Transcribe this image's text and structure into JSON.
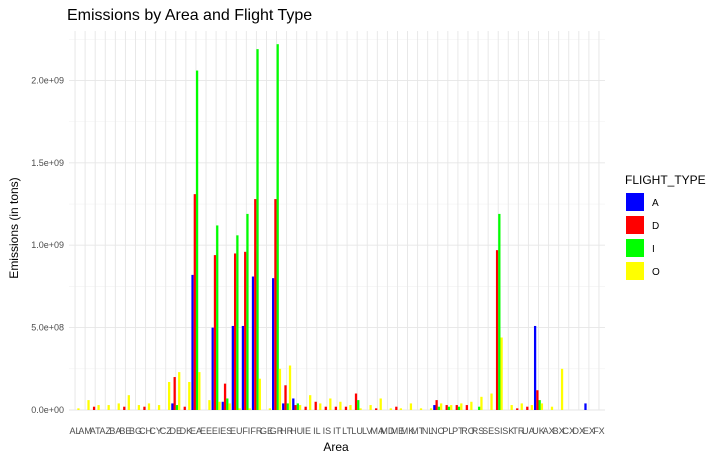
{
  "chart_data": {
    "type": "bar",
    "title": "Emissions by Area and Flight Type",
    "xlabel": "Area",
    "ylabel": "Emissions (in tons)",
    "ylim": [
      0,
      2300000000
    ],
    "yticks": [
      0,
      500000000,
      1000000000,
      1500000000,
      2000000000
    ],
    "ytick_labels": [
      "0.0e+00",
      "5.0e+08",
      "1.0e+09",
      "1.5e+09",
      "2.0e+09"
    ],
    "grid": true,
    "legend": {
      "title": "FLIGHT_TYPE",
      "position": "right"
    },
    "categories": [
      "AL",
      "AM",
      "AT",
      "AZ",
      "BA",
      "BE",
      "BG",
      "CH",
      "CY",
      "CZ",
      "DE",
      "DK",
      "EA",
      "EE",
      "EI",
      "ES",
      "EU",
      "FI",
      "FR",
      "GE",
      "GR",
      "HR",
      "HU",
      "IE",
      "IL",
      "IS",
      "IT",
      "LT",
      "LU",
      "LV",
      "MA",
      "MD",
      "ME",
      "MK",
      "MT",
      "NL",
      "NO",
      "PL",
      "PT",
      "RO",
      "RS",
      "SE",
      "SI",
      "SK",
      "TR",
      "UA",
      "UK",
      "AX",
      "BX",
      "CX",
      "DX",
      "EX",
      "FX"
    ],
    "xtick_labels": [
      "AL",
      "AM",
      "AT",
      "AZ",
      "BA",
      "BE",
      "BG",
      "CH",
      "CY",
      "CZ",
      "DE",
      "DK",
      "EA",
      "EE",
      "EI",
      "ES",
      "EU",
      "FI",
      "FR",
      "GE",
      "GR",
      "HR",
      "HU",
      "IE",
      "IL",
      "IS",
      "IT",
      "LT",
      "LU",
      "LV",
      "MA",
      "MD",
      "ME",
      "MK",
      "MT",
      "NL",
      "NO",
      "PL",
      "PT",
      "RO",
      "RS",
      "SE",
      "SI",
      "SK",
      "TR",
      "UA",
      "UK",
      "AX",
      "BX",
      "CX",
      "DX",
      "EX",
      "FX"
    ],
    "series": [
      {
        "name": "A",
        "color": "#0000ff",
        "values": [
          0,
          0,
          0,
          0,
          0,
          0,
          0,
          0,
          0,
          0,
          40000000,
          0,
          820000000,
          0,
          500000000,
          50000000,
          510000000,
          510000000,
          810000000,
          0,
          800000000,
          40000000,
          70000000,
          0,
          0,
          0,
          0,
          0,
          0,
          0,
          0,
          0,
          0,
          0,
          0,
          0,
          30000000,
          0,
          0,
          0,
          0,
          0,
          0,
          0,
          0,
          0,
          510000000,
          0,
          0,
          0,
          0,
          40000000,
          0
        ]
      },
      {
        "name": "D",
        "color": "#ff0000",
        "values": [
          0,
          0,
          20000000,
          0,
          0,
          20000000,
          0,
          20000000,
          0,
          0,
          200000000,
          20000000,
          1310000000,
          0,
          940000000,
          160000000,
          950000000,
          960000000,
          1280000000,
          0,
          1280000000,
          150000000,
          30000000,
          20000000,
          50000000,
          20000000,
          20000000,
          20000000,
          100000000,
          0,
          10000000,
          0,
          20000000,
          0,
          0,
          0,
          60000000,
          30000000,
          30000000,
          30000000,
          0,
          0,
          970000000,
          0,
          10000000,
          20000000,
          120000000,
          0,
          0,
          0,
          0,
          0,
          0
        ]
      },
      {
        "name": "I",
        "color": "#00ff00",
        "values": [
          0,
          0,
          0,
          0,
          0,
          0,
          0,
          0,
          0,
          0,
          30000000,
          0,
          2060000000,
          0,
          1120000000,
          70000000,
          1060000000,
          1190000000,
          2190000000,
          0,
          2220000000,
          40000000,
          40000000,
          0,
          0,
          0,
          0,
          0,
          60000000,
          0,
          0,
          0,
          0,
          0,
          0,
          0,
          20000000,
          20000000,
          20000000,
          0,
          20000000,
          0,
          1190000000,
          0,
          0,
          0,
          60000000,
          0,
          0,
          0,
          0,
          0,
          0
        ]
      },
      {
        "name": "O",
        "color": "#ffff00",
        "values": [
          10000000,
          60000000,
          30000000,
          30000000,
          40000000,
          90000000,
          30000000,
          40000000,
          30000000,
          170000000,
          230000000,
          170000000,
          230000000,
          60000000,
          50000000,
          40000000,
          10000000,
          10000000,
          190000000,
          10000000,
          250000000,
          270000000,
          30000000,
          90000000,
          40000000,
          70000000,
          50000000,
          30000000,
          10000000,
          30000000,
          70000000,
          10000000,
          10000000,
          40000000,
          10000000,
          10000000,
          40000000,
          30000000,
          40000000,
          50000000,
          80000000,
          100000000,
          440000000,
          30000000,
          40000000,
          30000000,
          40000000,
          20000000,
          250000000,
          0,
          0,
          0,
          0
        ]
      }
    ]
  }
}
